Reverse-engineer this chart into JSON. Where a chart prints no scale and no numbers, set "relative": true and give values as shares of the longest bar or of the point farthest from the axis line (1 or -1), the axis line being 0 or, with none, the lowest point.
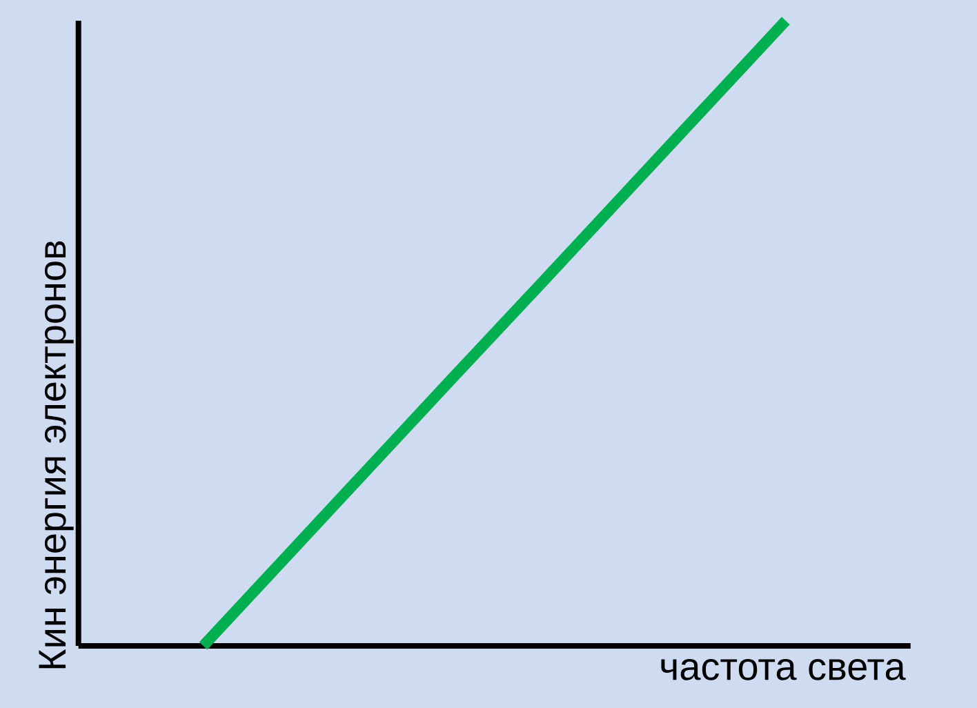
{
  "chart_data": {
    "type": "line",
    "xlabel": "частота света",
    "ylabel": "Кин энергия электронов",
    "relative": true,
    "categories": [
      null,
      null,
      null,
      null,
      null,
      null,
      null,
      null,
      null,
      null
    ],
    "series": [
      {
        "color": "#00b050",
        "values": [
          null,
          0,
          0.143,
          0.286,
          0.429,
          0.571,
          0.714,
          0.857,
          1,
          null
        ]
      }
    ]
  }
}
